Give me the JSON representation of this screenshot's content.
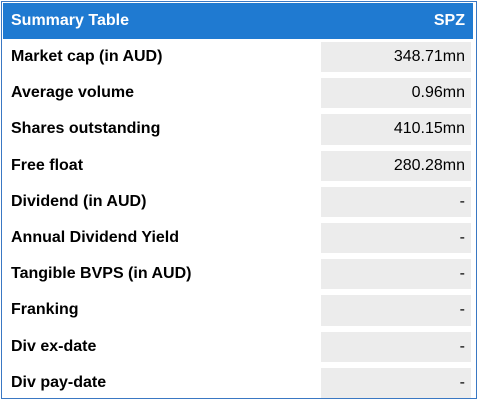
{
  "table": {
    "title": "Summary Table",
    "ticker": "SPZ",
    "rows": [
      {
        "label": "Market cap (in AUD)",
        "value": "348.71mn"
      },
      {
        "label": "Average volume",
        "value": "0.96mn"
      },
      {
        "label": "Shares outstanding",
        "value": "410.15mn"
      },
      {
        "label": "Free float",
        "value": "280.28mn"
      },
      {
        "label": "Dividend (in AUD)",
        "value": "-"
      },
      {
        "label": "Annual Dividend Yield",
        "value": "-"
      },
      {
        "label": "Tangible BVPS (in AUD)",
        "value": "-"
      },
      {
        "label": "Franking",
        "value": "-"
      },
      {
        "label": "Div ex-date",
        "value": "-"
      },
      {
        "label": "Div pay-date",
        "value": "-"
      }
    ]
  },
  "colors": {
    "header_bg": "#1f7ad1",
    "border": "#3a78c3",
    "value_cell_bg": "#ececec"
  }
}
